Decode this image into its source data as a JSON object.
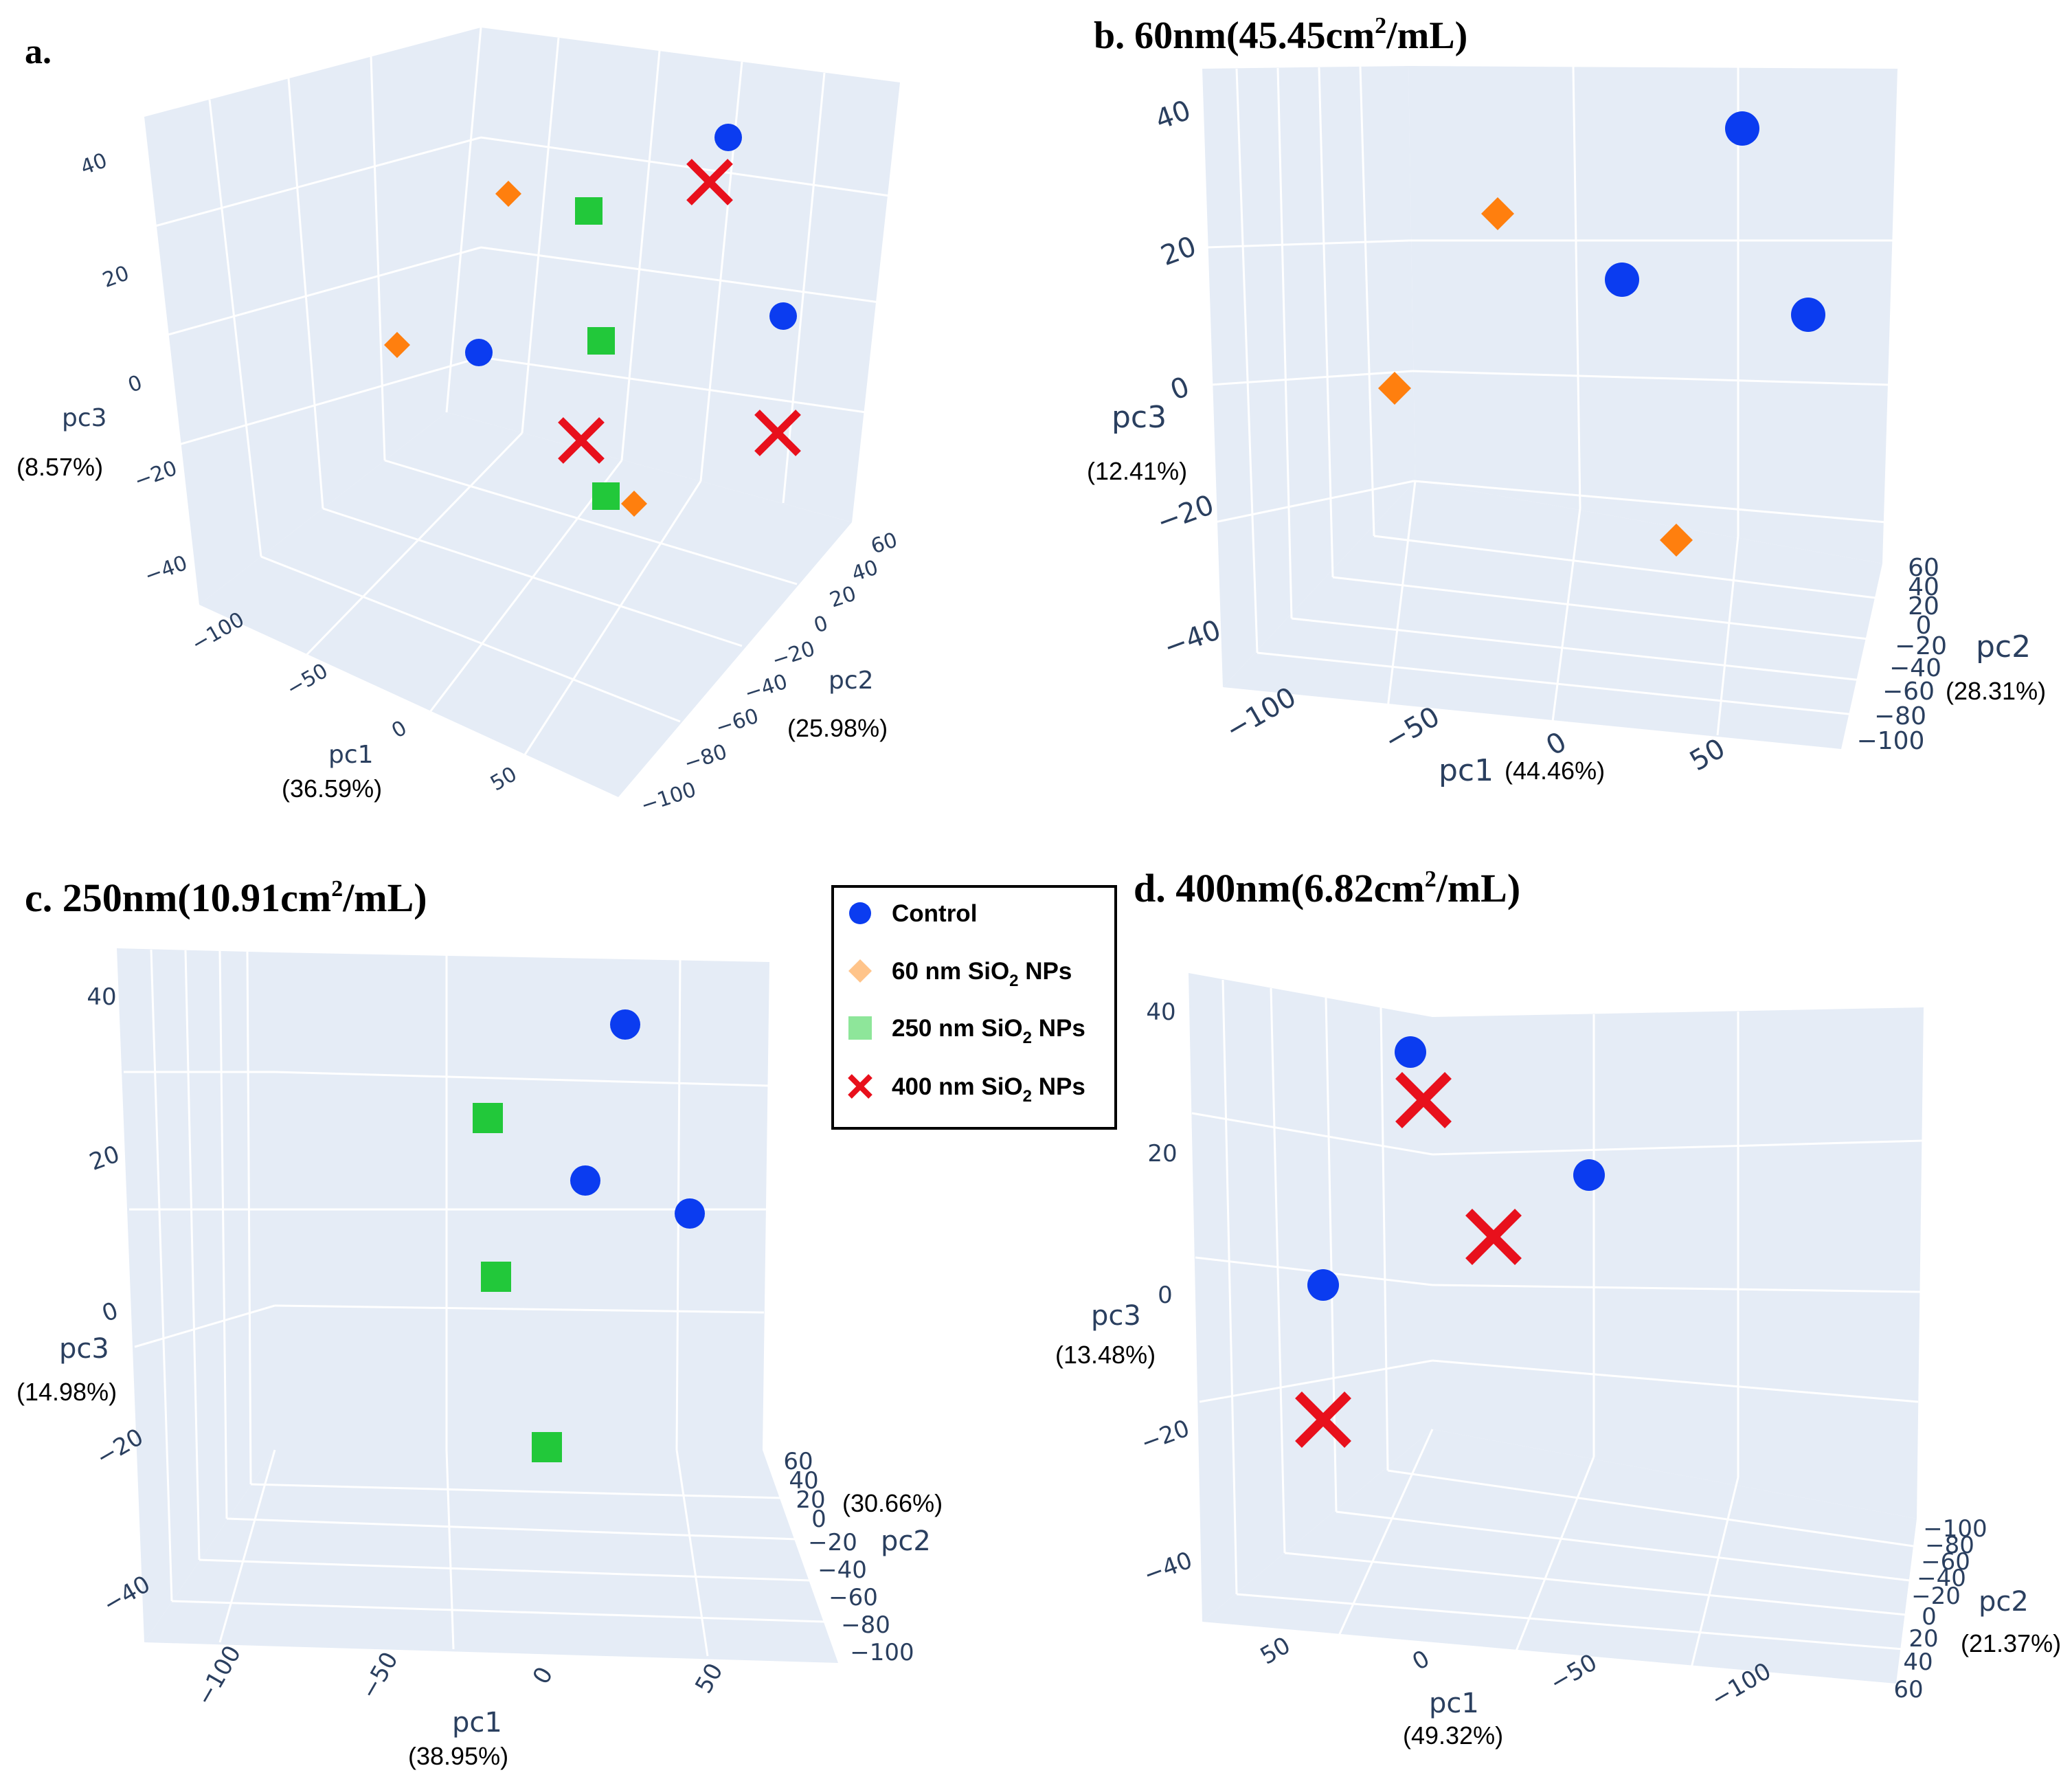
{
  "colors": {
    "control": "#0b3cf0",
    "sio2_60": "#ff7f0e",
    "sio2_60_legend": "#ffc48a",
    "sio2_250": "#22c83a",
    "sio2_250_legend": "#8ee69a",
    "sio2_400": "#e8101c",
    "pane": "#e5ecf6",
    "grid": "#ffffff",
    "tick": "#2a3f5f"
  },
  "legend": {
    "items": [
      {
        "key": "control",
        "label": "Control",
        "sub": "",
        "suffix": "",
        "marker": "circle"
      },
      {
        "key": "sio2_60",
        "label": "60 nm SiO",
        "sub": "2",
        "suffix": " NPs",
        "marker": "diamond"
      },
      {
        "key": "sio2_250",
        "label": "250 nm SiO",
        "sub": "2",
        "suffix": " NPs",
        "marker": "square"
      },
      {
        "key": "sio2_400",
        "label": "400 nm SiO",
        "sub": "2",
        "suffix": " NPs",
        "marker": "x"
      }
    ]
  },
  "chart_data": [
    {
      "type": "scatter3d",
      "panel": "a",
      "title": "a.",
      "title_sup": "",
      "title_tail": "",
      "axes": {
        "pc1": {
          "label": "pc1",
          "pct": "(36.59%)",
          "ticks": [
            "−100",
            "−50",
            "0",
            "50"
          ]
        },
        "pc2": {
          "label": "pc2",
          "pct": "(25.98%)",
          "ticks": [
            "60",
            "40",
            "20",
            "0",
            "−20",
            "−40",
            "−60",
            "−80",
            "−100"
          ]
        },
        "pc3": {
          "label": "pc3",
          "pct": "(8.57%)",
          "ticks": [
            "40",
            "20",
            "0",
            "−20",
            "−40"
          ]
        }
      },
      "points": [
        {
          "group": "control",
          "marker": "circle"
        },
        {
          "group": "control",
          "marker": "circle"
        },
        {
          "group": "control",
          "marker": "circle"
        },
        {
          "group": "sio2_60",
          "marker": "diamond"
        },
        {
          "group": "sio2_60",
          "marker": "diamond"
        },
        {
          "group": "sio2_60",
          "marker": "diamond"
        },
        {
          "group": "sio2_250",
          "marker": "square"
        },
        {
          "group": "sio2_250",
          "marker": "square"
        },
        {
          "group": "sio2_250",
          "marker": "square"
        },
        {
          "group": "sio2_400",
          "marker": "x"
        },
        {
          "group": "sio2_400",
          "marker": "x"
        },
        {
          "group": "sio2_400",
          "marker": "x"
        }
      ]
    },
    {
      "type": "scatter3d",
      "panel": "b",
      "title": "b. 60nm(45.45cm",
      "title_sup": "2",
      "title_tail": "/mL)",
      "axes": {
        "pc1": {
          "label": "pc1",
          "pct": "(44.46%)",
          "ticks": [
            "−100",
            "−50",
            "0",
            "50"
          ]
        },
        "pc2": {
          "label": "pc2",
          "pct": "(28.31%)",
          "ticks": [
            "60",
            "40",
            "20",
            "0",
            "−20",
            "−40",
            "−60",
            "−80",
            "−100"
          ]
        },
        "pc3": {
          "label": "pc3",
          "pct": "(12.41%)",
          "ticks": [
            "40",
            "20",
            "0",
            "−20",
            "−40"
          ]
        }
      },
      "points": [
        {
          "group": "control",
          "marker": "circle"
        },
        {
          "group": "control",
          "marker": "circle"
        },
        {
          "group": "control",
          "marker": "circle"
        },
        {
          "group": "sio2_60",
          "marker": "diamond"
        },
        {
          "group": "sio2_60",
          "marker": "diamond"
        },
        {
          "group": "sio2_60",
          "marker": "diamond"
        }
      ]
    },
    {
      "type": "scatter3d",
      "panel": "c",
      "title": "c. 250nm(10.91cm",
      "title_sup": "2",
      "title_tail": "/mL)",
      "axes": {
        "pc1": {
          "label": "pc1",
          "pct": "(38.95%)",
          "ticks": [
            "−100",
            "−50",
            "0",
            "50"
          ]
        },
        "pc2": {
          "label": "pc2",
          "pct": "(30.66%)",
          "ticks": [
            "60",
            "40",
            "20",
            "0",
            "−20",
            "−40",
            "−60",
            "−80",
            "−100"
          ]
        },
        "pc3": {
          "label": "pc3",
          "pct": "(14.98%)",
          "ticks": [
            "40",
            "20",
            "0",
            "−20",
            "−40"
          ]
        }
      },
      "points": [
        {
          "group": "control",
          "marker": "circle"
        },
        {
          "group": "control",
          "marker": "circle"
        },
        {
          "group": "control",
          "marker": "circle"
        },
        {
          "group": "sio2_250",
          "marker": "square"
        },
        {
          "group": "sio2_250",
          "marker": "square"
        },
        {
          "group": "sio2_250",
          "marker": "square"
        }
      ]
    },
    {
      "type": "scatter3d",
      "panel": "d",
      "title": "d. 400nm(6.82cm",
      "title_sup": "2",
      "title_tail": "/mL)",
      "axes": {
        "pc1": {
          "label": "pc1",
          "pct": "(49.32%)",
          "ticks": [
            "50",
            "0",
            "−50",
            "−100"
          ]
        },
        "pc2": {
          "label": "pc2",
          "pct": "(21.37%)",
          "ticks": [
            "−100",
            "−80",
            "−60",
            "−40",
            "−20",
            "0",
            "20",
            "40",
            "60"
          ]
        },
        "pc3": {
          "label": "pc3",
          "pct": "(13.48%)",
          "ticks": [
            "40",
            "20",
            "0",
            "−20",
            "−40"
          ]
        }
      },
      "points": [
        {
          "group": "control",
          "marker": "circle"
        },
        {
          "group": "control",
          "marker": "circle"
        },
        {
          "group": "control",
          "marker": "circle"
        },
        {
          "group": "sio2_400",
          "marker": "x"
        },
        {
          "group": "sio2_400",
          "marker": "x"
        },
        {
          "group": "sio2_400",
          "marker": "x"
        }
      ]
    }
  ]
}
